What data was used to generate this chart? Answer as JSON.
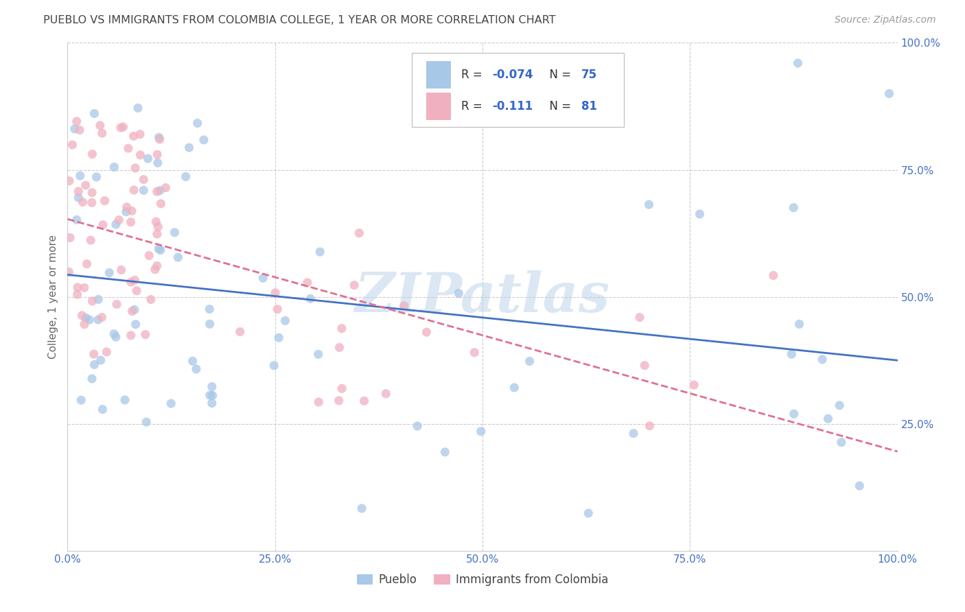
{
  "title": "PUEBLO VS IMMIGRANTS FROM COLOMBIA COLLEGE, 1 YEAR OR MORE CORRELATION CHART",
  "source": "Source: ZipAtlas.com",
  "ylabel": "College, 1 year or more",
  "xlim": [
    0.0,
    1.0
  ],
  "ylim": [
    0.0,
    1.0
  ],
  "xticks": [
    0.0,
    0.25,
    0.5,
    0.75,
    1.0
  ],
  "yticks": [
    0.25,
    0.5,
    0.75,
    1.0
  ],
  "xticklabels": [
    "0.0%",
    "25.0%",
    "50.0%",
    "75.0%",
    "100.0%"
  ],
  "yticklabels": [
    "25.0%",
    "50.0%",
    "75.0%",
    "100.0%"
  ],
  "watermark": "ZIPatlas",
  "pueblo_color": "#a8c8e8",
  "colombia_color": "#f0b0c0",
  "pueblo_line_color": "#4472c4",
  "colombia_line_color": "#e07090",
  "R_pueblo": -0.074,
  "N_pueblo": 75,
  "R_colombia": -0.111,
  "N_colombia": 81,
  "legend_label_pueblo": "Pueblo",
  "legend_label_colombia": "Immigrants from Colombia",
  "background_color": "#ffffff",
  "grid_color": "#cccccc",
  "title_color": "#444444",
  "tick_color": "#4472c4",
  "source_color": "#999999",
  "ylabel_color": "#666666",
  "title_fontsize": 11.5,
  "axis_fontsize": 11,
  "tick_fontsize": 11,
  "legend_fontsize": 12,
  "source_fontsize": 10
}
